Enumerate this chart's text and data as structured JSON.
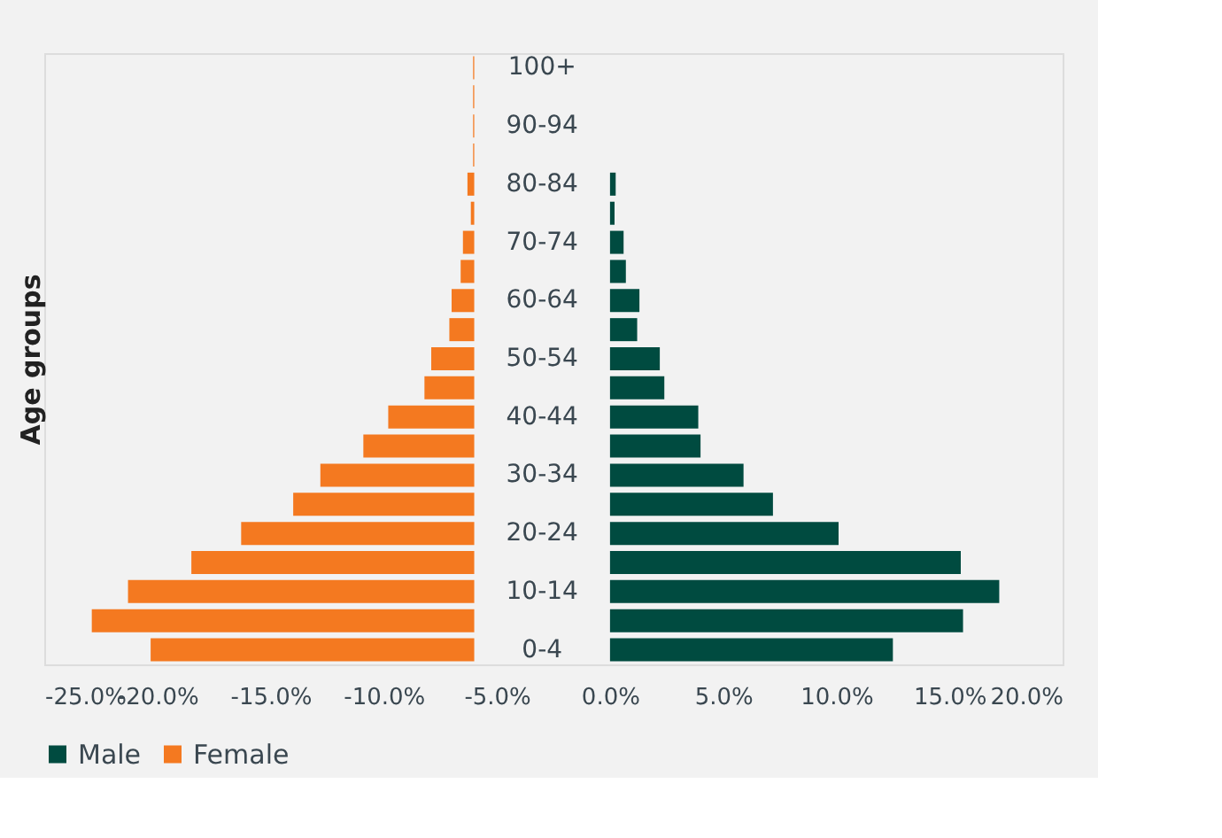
{
  "chart_data": {
    "type": "bar",
    "orientation": "horizontal",
    "ylabel": "Age groups",
    "categories": [
      "100+",
      null,
      "90-94",
      null,
      "80-84",
      null,
      "70-74",
      null,
      "60-64",
      null,
      "50-54",
      null,
      "40-44",
      null,
      "30-34",
      null,
      "20-24",
      null,
      "10-14",
      null,
      "0-4"
    ],
    "series": [
      {
        "name": "Male",
        "color": "#004b40",
        "base": [
          null,
          null,
          null,
          null,
          0,
          0,
          0,
          0,
          0,
          0,
          0,
          0,
          0,
          0,
          0,
          0,
          0,
          0,
          0,
          0,
          0
        ],
        "values": [
          null,
          null,
          null,
          null,
          0.25,
          0.2,
          0.6,
          0.7,
          1.3,
          1.2,
          2.2,
          2.4,
          3.9,
          4.0,
          5.9,
          7.2,
          10.1,
          15.5,
          17.2,
          15.6,
          12.5
        ]
      },
      {
        "name": "Female",
        "color": "#f47920",
        "base": [
          -6,
          -6,
          -6,
          -6,
          -6,
          -6,
          -6,
          -6,
          -6,
          -6,
          -6,
          -6,
          -6,
          -6,
          -6,
          -6,
          -6,
          -6,
          -6,
          -6,
          -6
        ],
        "values": [
          -0.05,
          -0.05,
          -0.05,
          -0.05,
          -0.3,
          -0.15,
          -0.5,
          -0.6,
          -1.0,
          -1.1,
          -1.9,
          -2.2,
          -3.8,
          -4.9,
          -6.8,
          -8.0,
          -10.3,
          -12.5,
          -15.3,
          -16.9,
          -14.3
        ]
      }
    ],
    "xlim": [
      -25,
      20
    ],
    "xticks": [
      {
        "value": -25,
        "label": "-25.0%"
      },
      {
        "value": -20,
        "label": "-20.0%"
      },
      {
        "value": -15,
        "label": "-15.0%"
      },
      {
        "value": -10,
        "label": "-10.0%"
      },
      {
        "value": -5,
        "label": "-5.0%"
      },
      {
        "value": 0,
        "label": "0.0%"
      },
      {
        "value": 5,
        "label": "5.0%"
      },
      {
        "value": 10,
        "label": "10.0%"
      },
      {
        "value": 15,
        "label": "15.0%"
      },
      {
        "value": 20,
        "label": "20.0%"
      }
    ],
    "grid": false,
    "legend": "bottom"
  }
}
